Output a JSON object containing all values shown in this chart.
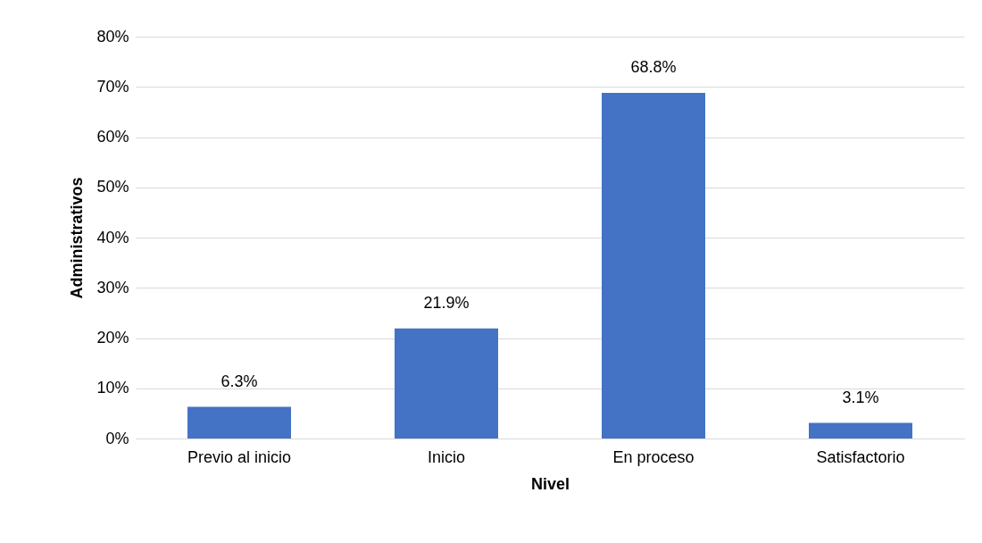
{
  "chart_data": {
    "type": "bar",
    "xlabel": "Nivel",
    "ylabel": "Administrativos",
    "categories": [
      "Previo al inicio",
      "Inicio",
      "En proceso",
      "Satisfactorio"
    ],
    "values": [
      6.3,
      21.9,
      68.8,
      3.1
    ],
    "value_labels": [
      "6.3%",
      "21.9%",
      "68.8%",
      "3.1%"
    ],
    "color": "#4472c4",
    "ylim": [
      0,
      80
    ],
    "yticks": [
      {
        "value": 0,
        "label": "0%"
      },
      {
        "value": 10,
        "label": "10%"
      },
      {
        "value": 20,
        "label": "20%"
      },
      {
        "value": 30,
        "label": "30%"
      },
      {
        "value": 40,
        "label": "40%"
      },
      {
        "value": 50,
        "label": "50%"
      },
      {
        "value": 60,
        "label": "60%"
      },
      {
        "value": 70,
        "label": "70%"
      },
      {
        "value": 80,
        "label": "80%"
      }
    ],
    "grid": "y"
  }
}
